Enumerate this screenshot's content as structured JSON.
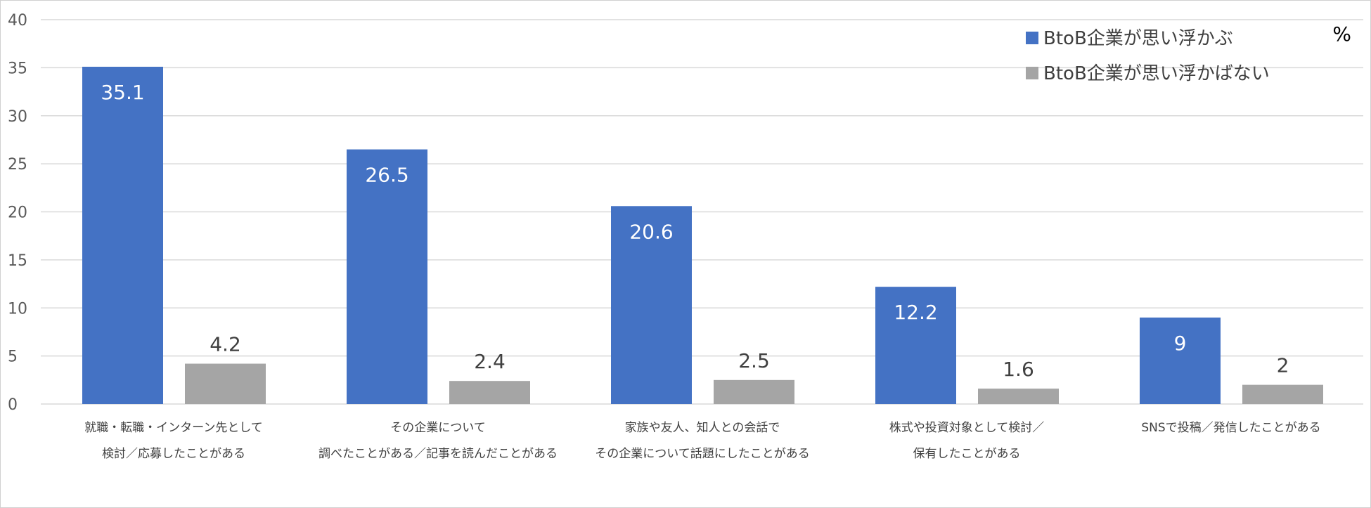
{
  "chart_data": {
    "type": "bar",
    "categories": [
      [
        "就職・転職・インターン先として",
        "検討／応募したことがある"
      ],
      [
        "その企業について",
        "調べたことがある／記事を読んだことがある"
      ],
      [
        "家族や友人、知人との会話で",
        "その企業について話題にしたことがある"
      ],
      [
        "株式や投資対象として検討／",
        "保有したことがある"
      ],
      [
        "SNSで投稿／発信したことがある"
      ]
    ],
    "series": [
      {
        "name": "BtoB企業が思い浮かぶ",
        "values": [
          35.1,
          26.5,
          20.6,
          12.2,
          9
        ],
        "color": "#4472C4",
        "value_label_color": "#ffffff"
      },
      {
        "name": "BtoB企業が思い浮かばない",
        "values": [
          4.2,
          2.4,
          2.5,
          1.6,
          2
        ],
        "color": "#A5A5A5",
        "value_label_color": "#404040"
      }
    ],
    "unit": "%",
    "ylim": [
      0,
      40
    ],
    "yticks": [
      0,
      5,
      10,
      15,
      20,
      25,
      30,
      35,
      40
    ],
    "grid": true,
    "legend_position": "top-right",
    "gridline_color": "#d9d9d9"
  }
}
